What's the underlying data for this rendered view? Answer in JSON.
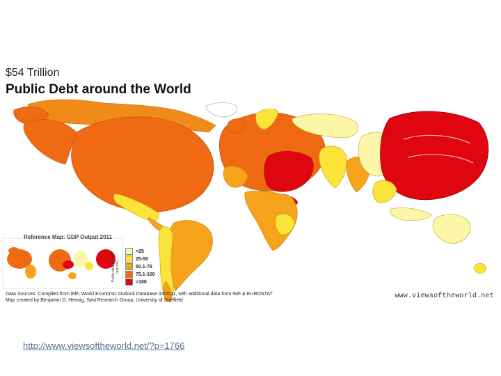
{
  "map": {
    "amount": "$54 Trillion",
    "title": "Public Debt around the World",
    "reference_title": "Reference Map: GDP Output 2011",
    "legend_axis_label": "Public debt to GDP ratio (%)",
    "legend": [
      {
        "label": "<25",
        "color": "#fdf6a8"
      },
      {
        "label": "25-50",
        "color": "#fbe33a"
      },
      {
        "label": "50.1-75",
        "color": "#f6a21a"
      },
      {
        "label": "75.1-100",
        "color": "#ef6a12"
      },
      {
        "label": ">100",
        "color": "#e0060f"
      }
    ],
    "sources_line1": "Data Sources: Compiled from IMF, World Economic Outlook Database 04/2011, with additional data from IMF & EUROSTAT",
    "sources_line2": "Map created by Benjamin D. Hennig, Sasi Research Group, University of Sheffield",
    "credit": "www.viewsoftheworld.net"
  },
  "footer": {
    "url": "http://www.viewsoftheworld.net/?p=1766"
  }
}
